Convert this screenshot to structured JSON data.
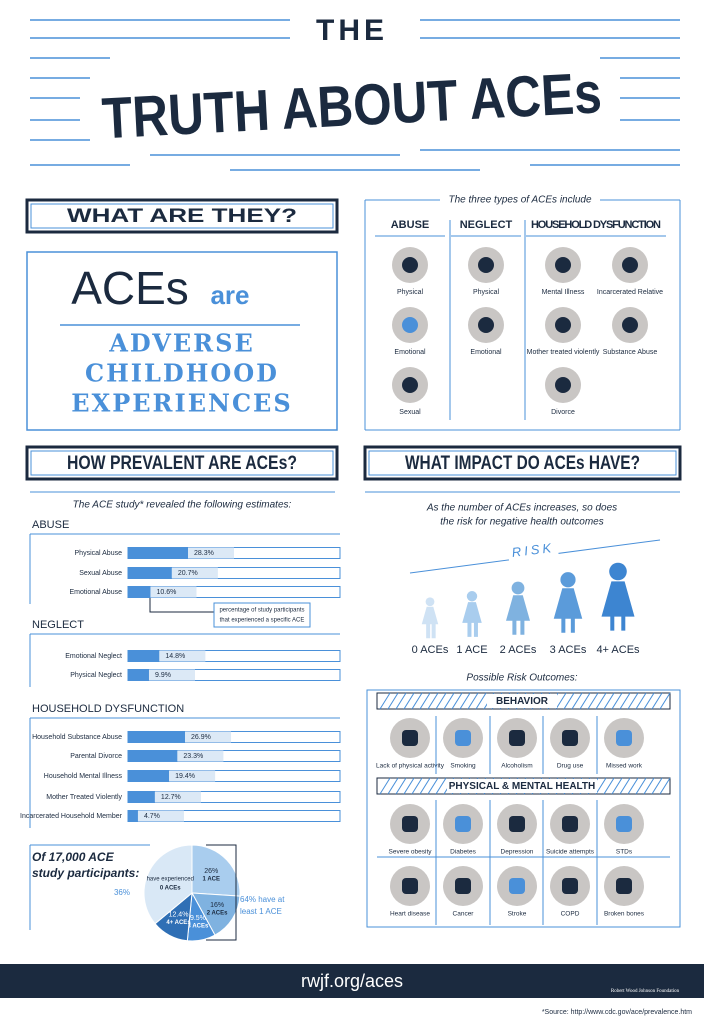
{
  "header": {
    "title_top": "THE",
    "title_main": "TRUTH ABOUT ACEs"
  },
  "what": {
    "heading": "WHAT ARE THEY?",
    "aces": "ACEs",
    "are": "are",
    "definition": [
      "ADVERSE",
      "CHILDHOOD",
      "EXPERIENCES"
    ]
  },
  "types": {
    "intro": "The three types of ACEs include",
    "groups": [
      {
        "name": "ABUSE",
        "items": [
          "Physical",
          "Emotional",
          "Sexual"
        ]
      },
      {
        "name": "NEGLECT",
        "items": [
          "Physical",
          "Emotional"
        ]
      },
      {
        "name": "HOUSEHOLD DYSFUNCTION",
        "items": [
          "Mental Illness",
          "Incarcerated Relative",
          "Mother treated violently",
          "Substance Abuse",
          "Divorce"
        ]
      }
    ]
  },
  "prevalence": {
    "heading": "HOW PREVALENT ARE ACEs?",
    "intro": "The ACE study* revealed the following estimates:",
    "note": [
      "percentage of study participants",
      "that experienced a specific ACE"
    ],
    "xlim": [
      0,
      100
    ],
    "groups": [
      {
        "name": "ABUSE",
        "categories": [
          "Physical Abuse",
          "Sexual Abuse",
          "Emotional Abuse"
        ],
        "values": [
          28.3,
          20.7,
          10.6
        ],
        "value_labels": [
          "28.3%",
          "20.7%",
          "10.6%"
        ]
      },
      {
        "name": "NEGLECT",
        "categories": [
          "Emotional Neglect",
          "Physical Neglect"
        ],
        "values": [
          14.8,
          9.9
        ],
        "value_labels": [
          "14.8%",
          "9.9%"
        ]
      },
      {
        "name": "HOUSEHOLD DYSFUNCTION",
        "categories": [
          "Household Substance Abuse",
          "Parental Divorce",
          "Household Mental Illness",
          "Mother Treated Violently",
          "Incarcerated Household Member"
        ],
        "values": [
          26.9,
          23.3,
          19.4,
          12.7,
          4.7
        ],
        "value_labels": [
          "26.9%",
          "23.3%",
          "19.4%",
          "12.7%",
          "4.7%"
        ]
      }
    ]
  },
  "pie": {
    "type": "pie",
    "caption": [
      "Of 17,000 ACE",
      "study participants:"
    ],
    "categories": [
      "1 ACE",
      "2 ACEs",
      "3 ACEs",
      "4+ ACEs",
      "0 ACEs"
    ],
    "values": [
      26,
      16,
      9.5,
      12.4,
      36
    ],
    "value_labels": [
      "26%",
      "16%",
      "9.5%",
      "12.4%",
      "36%"
    ],
    "colors": [
      "#a9cdee",
      "#7fb2e0",
      "#4a90d9",
      "#2f6fb5",
      "#d9e8f6"
    ],
    "zero_prefix": "have experienced",
    "note": [
      "64% have at",
      "least 1 ACE"
    ]
  },
  "impact": {
    "heading": "WHAT IMPACT DO ACEs HAVE?",
    "intro": [
      "As the number of ACEs increases, so does",
      "the risk for negative health outcomes"
    ],
    "risk": "RISK",
    "levels": [
      "0 ACEs",
      "1 ACE",
      "2 ACEs",
      "3 ACEs",
      "4+ ACEs"
    ],
    "outcomes_title": "Possible Risk Outcomes:",
    "behavior": {
      "heading": "BEHAVIOR",
      "items": [
        "Lack of physical activity",
        "Smoking",
        "Alcoholism",
        "Drug use",
        "Missed work"
      ]
    },
    "health": {
      "heading": "PHYSICAL & MENTAL HEALTH",
      "items": [
        "Severe obesity",
        "Diabetes",
        "Depression",
        "Suicide attempts",
        "STDs",
        "Heart disease",
        "Cancer",
        "Stroke",
        "COPD",
        "Broken bones"
      ]
    }
  },
  "footer": {
    "url": "rwjf.org/aces",
    "org": "Robert Wood Johnson Foundation",
    "source": "*Source: http://www.cdc.gov/ace/prevalence.htm"
  }
}
